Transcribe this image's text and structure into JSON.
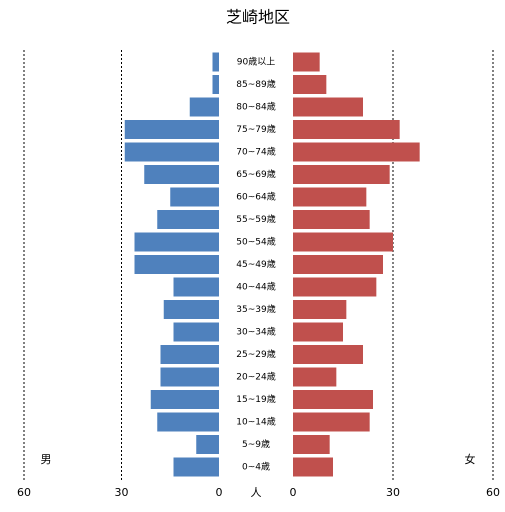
{
  "chart_data": {
    "type": "pyramid",
    "title": "芝崎地区",
    "xlabel": "人",
    "categories": [
      "90歳以上",
      "85~89歳",
      "80~84歳",
      "75~79歳",
      "70~74歳",
      "65~69歳",
      "60~64歳",
      "55~59歳",
      "50~54歳",
      "45~49歳",
      "40~44歳",
      "35~39歳",
      "30~34歳",
      "25~29歳",
      "20~24歳",
      "15~19歳",
      "10~14歳",
      "5~9歳",
      "0~4歳"
    ],
    "series": [
      {
        "name": "男",
        "color": "#4f81bd",
        "values": [
          2,
          2,
          9,
          29,
          29,
          23,
          15,
          19,
          26,
          26,
          14,
          17,
          14,
          18,
          18,
          21,
          19,
          7,
          14
        ]
      },
      {
        "name": "女",
        "color": "#c0504d",
        "values": [
          8,
          10,
          21,
          32,
          38,
          29,
          22,
          23,
          30,
          27,
          25,
          16,
          15,
          21,
          13,
          24,
          23,
          11,
          12
        ]
      }
    ],
    "xlim": [
      0,
      60
    ],
    "xticks": [
      0,
      30,
      60
    ],
    "grid": true
  }
}
